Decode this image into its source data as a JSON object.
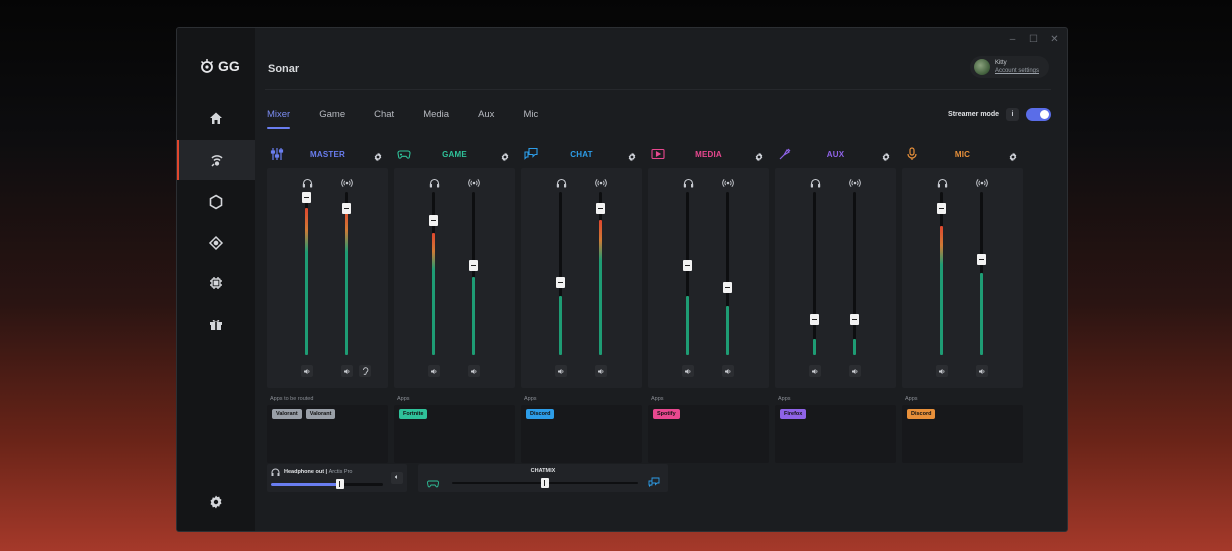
{
  "window": {
    "controls": [
      "–",
      "☐",
      "✕"
    ]
  },
  "brand": {
    "logo_text": "GG"
  },
  "app": {
    "title": "Sonar"
  },
  "account": {
    "name": "Kitty",
    "link": "Account settings"
  },
  "tabs": [
    {
      "label": "Mixer",
      "active": true
    },
    {
      "label": "Game",
      "active": false
    },
    {
      "label": "Chat",
      "active": false
    },
    {
      "label": "Media",
      "active": false
    },
    {
      "label": "Aux",
      "active": false
    },
    {
      "label": "Mic",
      "active": false
    }
  ],
  "streamer": {
    "label": "Streamer mode",
    "info": "i",
    "enabled": true
  },
  "channels": [
    {
      "id": "master",
      "name": "MASTER",
      "color": "#6a7ef0",
      "apps_label": "Apps to be routed",
      "sliders": [
        {
          "thumb": 0.97,
          "level": 0.9
        },
        {
          "thumb": 0.9,
          "level": 0.9
        }
      ],
      "apps": [
        {
          "name": "Valorant",
          "color": "#9aa0a8"
        },
        {
          "name": "Valorant",
          "color": "#9aa0a8"
        }
      ]
    },
    {
      "id": "game",
      "name": "GAME",
      "color": "#2fc29a",
      "apps_label": "Apps",
      "sliders": [
        {
          "thumb": 0.83,
          "level": 0.75
        },
        {
          "thumb": 0.55,
          "level": 0.48
        }
      ],
      "apps": [
        {
          "name": "Fortnite",
          "color": "#2fc29a"
        }
      ]
    },
    {
      "id": "chat",
      "name": "CHAT",
      "color": "#2d9de8",
      "apps_label": "Apps",
      "sliders": [
        {
          "thumb": 0.45,
          "level": 0.36
        },
        {
          "thumb": 0.9,
          "level": 0.83
        }
      ],
      "apps": [
        {
          "name": "Discord",
          "color": "#2d9de8"
        }
      ]
    },
    {
      "id": "media",
      "name": "MEDIA",
      "color": "#e8488f",
      "apps_label": "Apps",
      "sliders": [
        {
          "thumb": 0.55,
          "level": 0.36
        },
        {
          "thumb": 0.42,
          "level": 0.3
        }
      ],
      "apps": [
        {
          "name": "Spotify",
          "color": "#e8488f"
        }
      ]
    },
    {
      "id": "aux",
      "name": "AUX",
      "color": "#8f63e8",
      "apps_label": "Apps",
      "sliders": [
        {
          "thumb": 0.22,
          "level": 0.1
        },
        {
          "thumb": 0.22,
          "level": 0.1
        }
      ],
      "apps": [
        {
          "name": "Firefox",
          "color": "#8f63e8"
        }
      ]
    },
    {
      "id": "mic",
      "name": "MIC",
      "color": "#e8903a",
      "apps_label": "Apps",
      "sliders": [
        {
          "thumb": 0.9,
          "level": 0.79
        },
        {
          "thumb": 0.59,
          "level": 0.5
        }
      ],
      "apps": [
        {
          "name": "Discord",
          "color": "#e8903a"
        }
      ]
    }
  ],
  "headphone": {
    "label": "Headphone out",
    "device": "Arctis Pro",
    "volume": 0.62
  },
  "chatmix": {
    "label": "CHATMIX",
    "balance": 0.5
  }
}
